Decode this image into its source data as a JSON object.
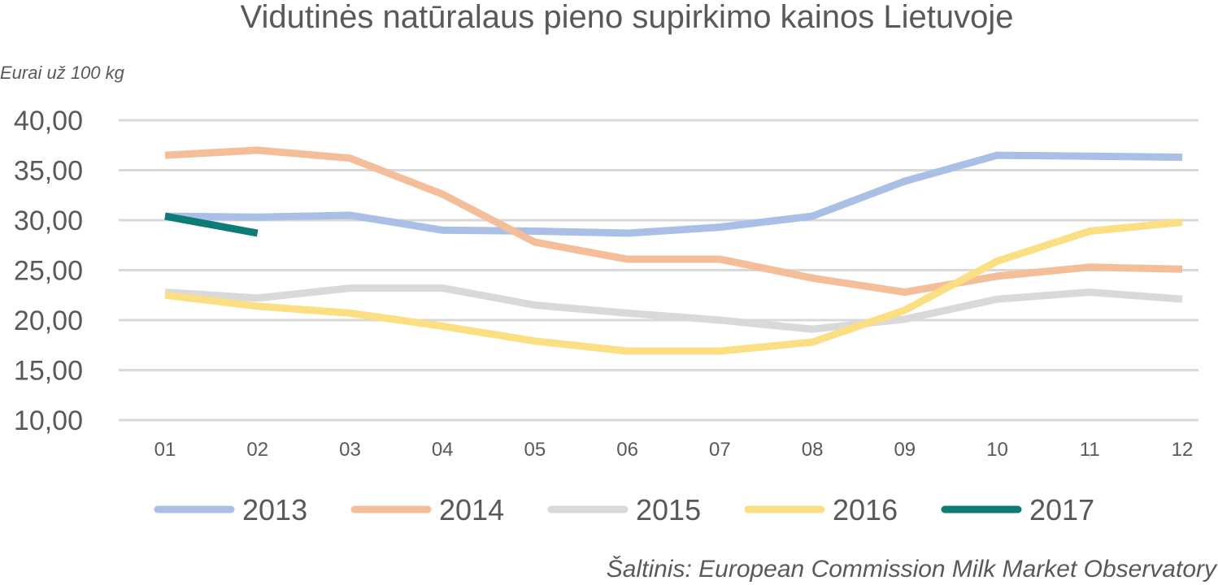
{
  "chart_data": {
    "type": "line",
    "title": "Vidutinės natūralaus pieno supirkimo kainos Lietuvoje",
    "ylabel": "Eurai už 100 kg",
    "xlabel": "",
    "source": "Šaltinis: European Commission Milk Market Observatory",
    "categories": [
      "01",
      "02",
      "03",
      "04",
      "05",
      "06",
      "07",
      "08",
      "09",
      "10",
      "11",
      "12"
    ],
    "ylim": [
      10,
      40
    ],
    "yticks": [
      10,
      15,
      20,
      25,
      30,
      35,
      40
    ],
    "ytick_labels": [
      "10,00",
      "15,00",
      "20,00",
      "25,00",
      "30,00",
      "35,00",
      "40,00"
    ],
    "grid": true,
    "legend_position": "bottom",
    "series": [
      {
        "name": "2013",
        "color": "#a9bfe6",
        "values": [
          30.4,
          30.3,
          30.5,
          29.0,
          28.9,
          28.7,
          29.3,
          30.4,
          33.9,
          36.5,
          36.4,
          36.3
        ]
      },
      {
        "name": "2014",
        "color": "#f5be9a",
        "values": [
          36.5,
          37.0,
          36.2,
          32.6,
          27.8,
          26.1,
          26.1,
          24.2,
          22.8,
          24.4,
          25.3,
          25.1
        ]
      },
      {
        "name": "2015",
        "color": "#d9d9d9",
        "values": [
          22.8,
          22.2,
          23.2,
          23.2,
          21.5,
          20.7,
          20.0,
          19.1,
          20.1,
          22.1,
          22.8,
          22.1
        ]
      },
      {
        "name": "2016",
        "color": "#fbdf82",
        "values": [
          22.5,
          21.4,
          20.7,
          19.4,
          17.9,
          16.9,
          16.9,
          17.8,
          21.0,
          25.9,
          28.9,
          29.8
        ]
      },
      {
        "name": "2017",
        "color": "#0f7b76",
        "values": [
          30.4,
          28.7,
          null,
          null,
          null,
          null,
          null,
          null,
          null,
          null,
          null,
          null
        ]
      }
    ]
  }
}
